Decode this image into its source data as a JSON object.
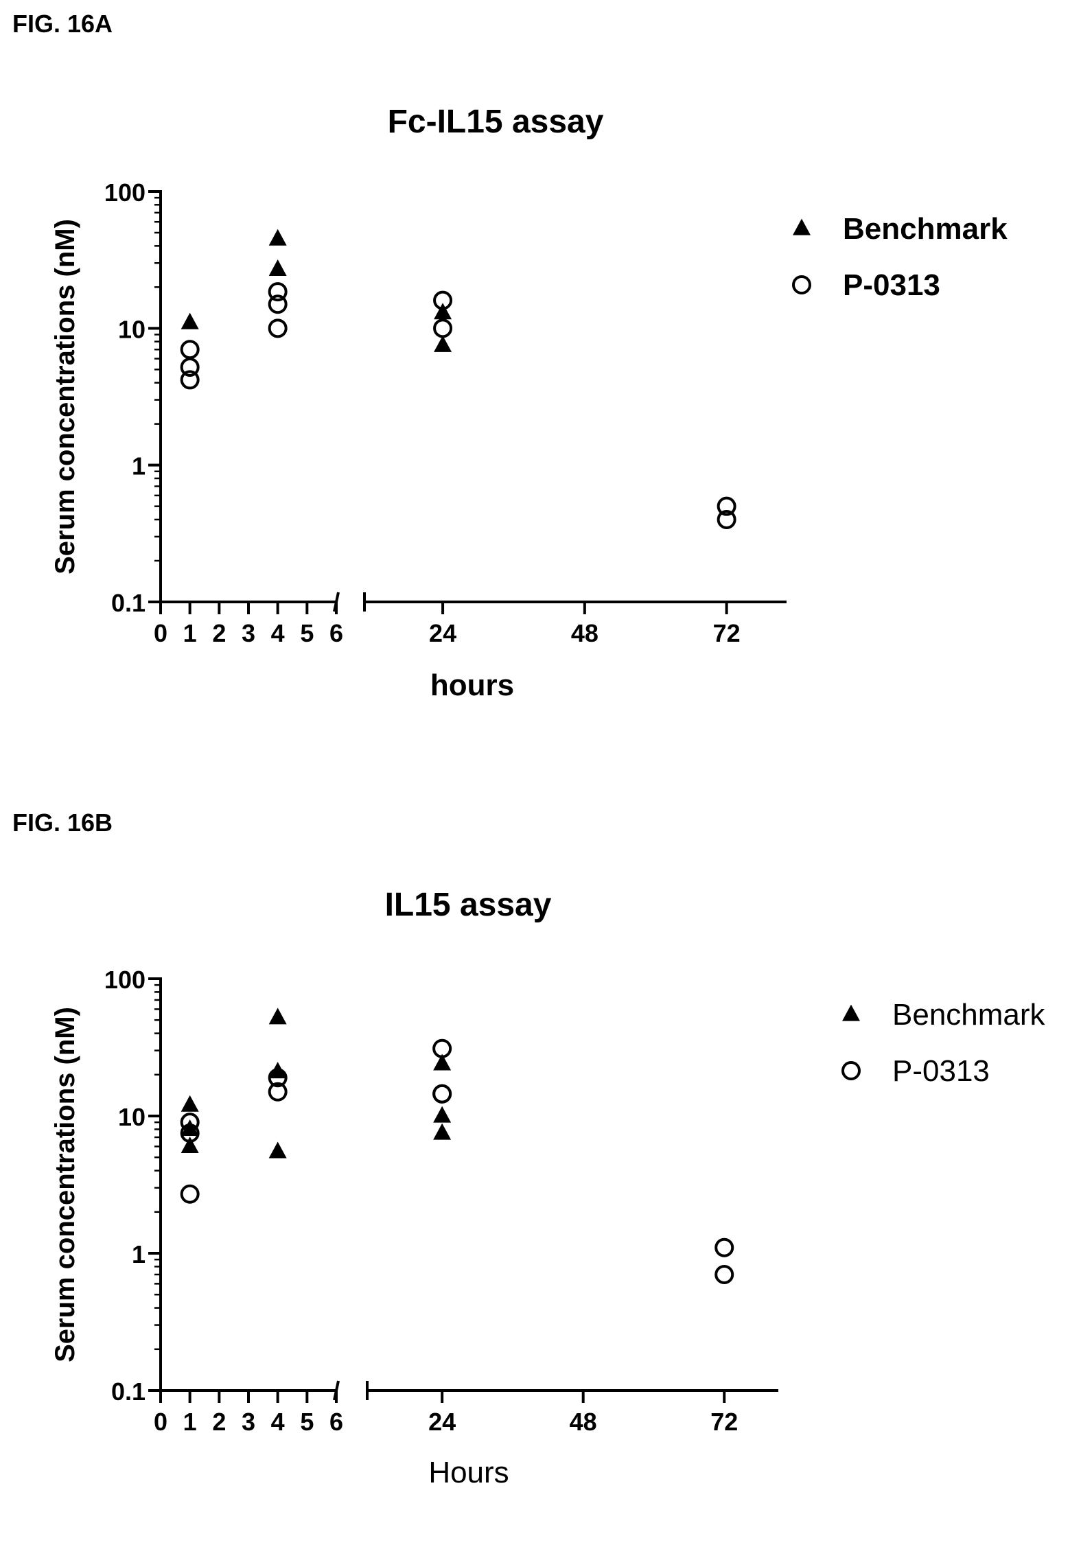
{
  "figures": [
    {
      "label": "FIG. 16A"
    },
    {
      "label": "FIG. 16B"
    }
  ],
  "chart_data": [
    {
      "type": "scatter",
      "title": "Fc-IL15 assay",
      "xlabel": "hours",
      "ylabel": "Serum concentrations (nM)",
      "yscale": "log",
      "ylim": [
        0.1,
        100
      ],
      "y_ticks": [
        "100",
        "10",
        "1",
        "0.1"
      ],
      "y_tick_values": [
        100,
        10,
        1,
        0.1
      ],
      "x_axis_segments": [
        {
          "range": [
            0,
            6
          ],
          "ticks": [
            "0",
            "1",
            "2",
            "3",
            "4",
            "5",
            "6"
          ],
          "tick_values": [
            0,
            1,
            2,
            3,
            4,
            5,
            6
          ]
        },
        {
          "range": [
            6,
            84
          ],
          "ticks": [
            "24",
            "48",
            "72"
          ],
          "tick_values": [
            24,
            48,
            72
          ]
        }
      ],
      "legend_position": "top-right",
      "legend_bold": true,
      "grid": false,
      "series": [
        {
          "name": "Benchmark",
          "marker": "filled-triangle",
          "points": [
            [
              1,
              11
            ],
            [
              4,
              45
            ],
            [
              4,
              27
            ],
            [
              24,
              13
            ],
            [
              24,
              7.5
            ]
          ]
        },
        {
          "name": "P-0313",
          "marker": "open-circle",
          "points": [
            [
              1,
              7
            ],
            [
              1,
              5.2
            ],
            [
              1,
              4.2
            ],
            [
              4,
              18.5
            ],
            [
              4,
              15
            ],
            [
              4,
              10
            ],
            [
              24,
              16
            ],
            [
              24,
              10
            ],
            [
              72,
              0.5
            ],
            [
              72,
              0.4
            ]
          ]
        }
      ]
    },
    {
      "type": "scatter",
      "title": "IL15 assay",
      "xlabel": "Hours",
      "ylabel": "Serum concentrations (nM)",
      "yscale": "log",
      "ylim": [
        0.1,
        100
      ],
      "y_ticks": [
        "100",
        "10",
        "1",
        "0.1"
      ],
      "y_tick_values": [
        100,
        10,
        1,
        0.1
      ],
      "x_axis_segments": [
        {
          "range": [
            0,
            6
          ],
          "ticks": [
            "0",
            "1",
            "2",
            "3",
            "4",
            "5",
            "6"
          ],
          "tick_values": [
            0,
            1,
            2,
            3,
            4,
            5,
            6
          ]
        },
        {
          "range": [
            6,
            84
          ],
          "ticks": [
            "24",
            "48",
            "72"
          ],
          "tick_values": [
            24,
            48,
            72
          ]
        }
      ],
      "legend_position": "top-right",
      "legend_bold": false,
      "grid": false,
      "series": [
        {
          "name": "Benchmark",
          "marker": "filled-triangle",
          "points": [
            [
              1,
              12
            ],
            [
              1,
              8
            ],
            [
              1,
              6
            ],
            [
              4,
              52
            ],
            [
              4,
              21
            ],
            [
              4,
              5.5
            ],
            [
              24,
              24
            ],
            [
              24,
              10
            ],
            [
              24,
              7.5
            ]
          ]
        },
        {
          "name": "P-0313",
          "marker": "open-circle",
          "points": [
            [
              1,
              9
            ],
            [
              1,
              7.5
            ],
            [
              1,
              2.7
            ],
            [
              4,
              19
            ],
            [
              4,
              15
            ],
            [
              24,
              31
            ],
            [
              24,
              14.5
            ],
            [
              24,
              14.5
            ],
            [
              72,
              1.1
            ],
            [
              72,
              0.7
            ]
          ]
        }
      ]
    }
  ]
}
